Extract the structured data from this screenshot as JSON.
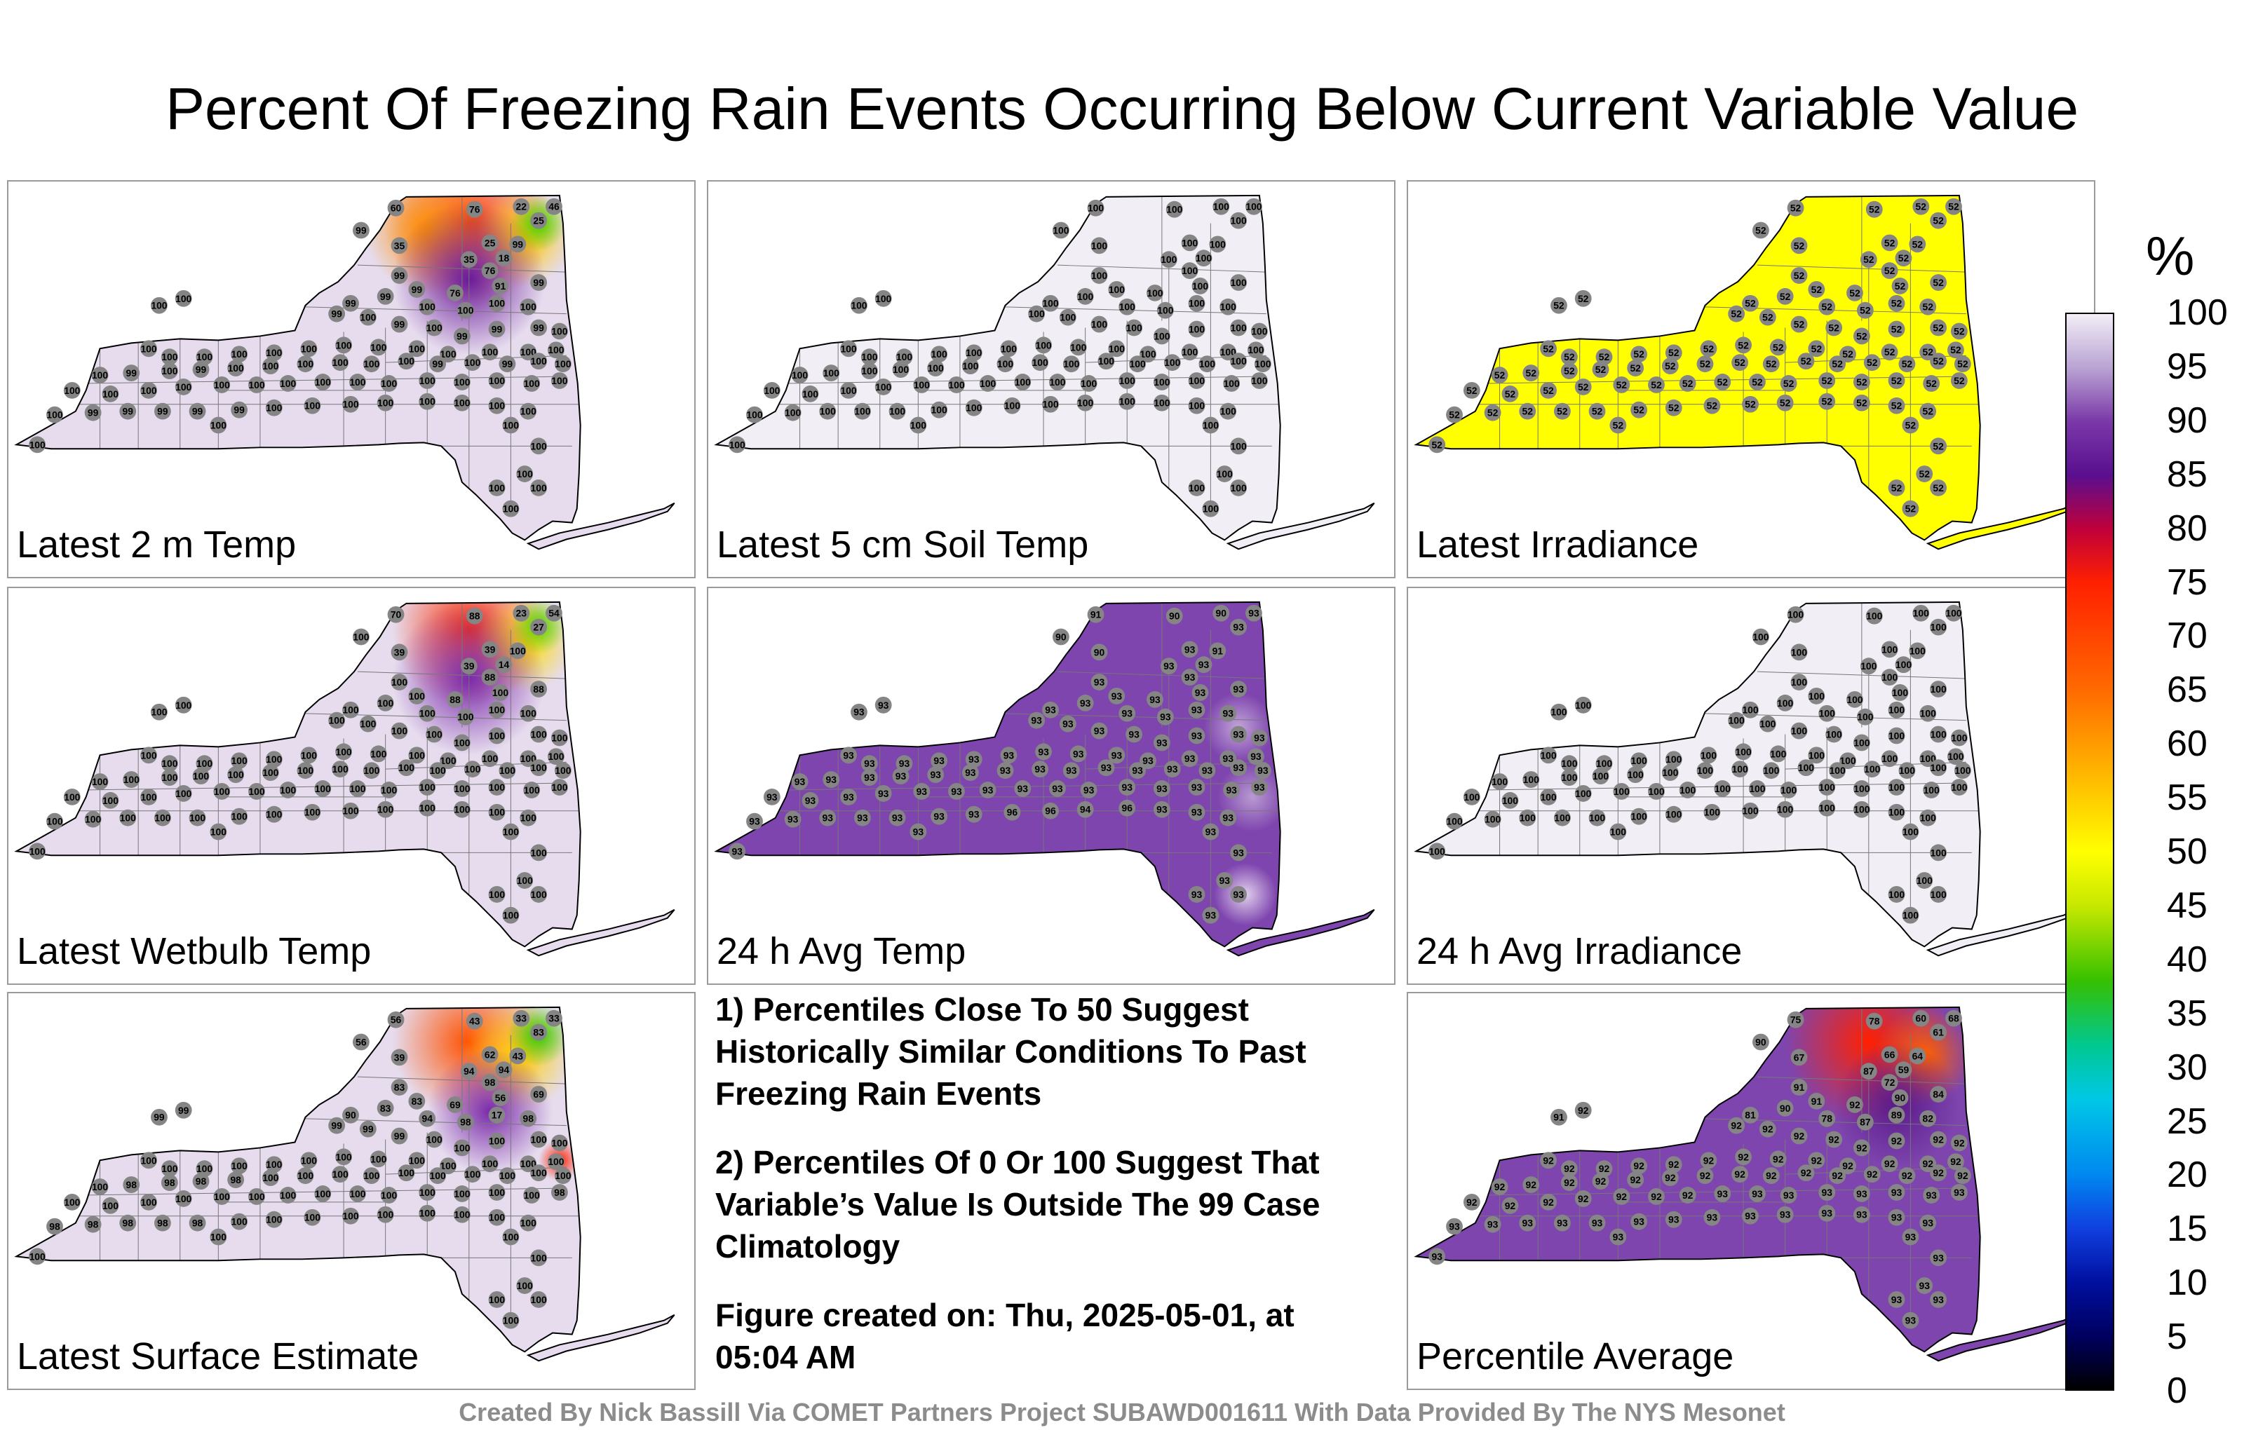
{
  "title": "Percent Of Freezing Rain Events Occurring Below Current Variable Value",
  "legend": {
    "unit": "%",
    "ticks": [
      "100",
      "95",
      "90",
      "85",
      "80",
      "75",
      "70",
      "65",
      "60",
      "55",
      "50",
      "45",
      "40",
      "35",
      "30",
      "25",
      "20",
      "15",
      "10",
      "5",
      "0"
    ]
  },
  "panels": [
    {
      "label": "Latest 2 m Temp",
      "base_color": "#e6dcee"
    },
    {
      "label": "Latest 5 cm Soil Temp",
      "base_color": "#f1eef5"
    },
    {
      "label": "Latest Irradiance",
      "base_color": "#ffff00"
    },
    {
      "label": "Latest Wetbulb Temp",
      "base_color": "#e6dcee"
    },
    {
      "label": "24 h Avg Temp",
      "base_color": "#7e45ae"
    },
    {
      "label": "24 h Avg Irradiance",
      "base_color": "#f1eef5"
    },
    {
      "label": "Latest Surface Estimate",
      "base_color": "#e6dcee"
    },
    {
      "label": "Percentile Average",
      "base_color": "#7e45ae"
    }
  ],
  "notes": [
    "1) Percentiles Close To 50 Suggest Historically Similar Conditions To Past Freezing Rain Events",
    "2) Percentiles Of 0 Or 100 Suggest That Variable’s Value Is Outside The 99 Case Climatology",
    "Figure created on: Thu, 2025-05-01, at 05:04 AM"
  ],
  "credit": "Created By Nick Bassill Via COMET Partners Project SUBAWD001611 With Data Provided By The NYS Mesonet",
  "station_values": {
    "latest_2m_temp": [
      "60",
      "76",
      "22",
      "46",
      "25",
      "99",
      "35",
      "25",
      "99",
      "35",
      "18",
      "76",
      "99",
      "99",
      "76",
      "91",
      "99",
      "99",
      "99",
      "100",
      "100",
      "100",
      "100",
      "100",
      "100",
      "99",
      "100",
      "99",
      "100",
      "99",
      "99",
      "99",
      "100",
      "100",
      "100",
      "100",
      "100",
      "100",
      "100",
      "100",
      "100",
      "100",
      "100",
      "100",
      "100",
      "100",
      "100",
      "99",
      "100",
      "99",
      "100",
      "100",
      "100",
      "100",
      "100",
      "100",
      "99",
      "100",
      "99",
      "100",
      "100",
      "100",
      "100",
      "100",
      "100",
      "100",
      "100",
      "100",
      "100",
      "100",
      "100",
      "100",
      "100",
      "100",
      "100",
      "100",
      "100",
      "99",
      "99",
      "99",
      "99",
      "99",
      "100",
      "100",
      "100",
      "100",
      "100",
      "100",
      "100",
      "100",
      "100",
      "100",
      "100",
      "100",
      "100",
      "100",
      "100",
      "100",
      "100",
      "100",
      "100",
      "100"
    ],
    "latest_5cm_soil_temp": [
      "100",
      "100",
      "100",
      "100",
      "100",
      "100",
      "100",
      "100",
      "100",
      "100",
      "100",
      "100",
      "100",
      "100",
      "100",
      "100",
      "100",
      "100",
      "100",
      "100",
      "100",
      "100",
      "100",
      "100",
      "100",
      "100",
      "100",
      "100",
      "100",
      "100",
      "100",
      "100",
      "100",
      "100",
      "100",
      "100",
      "100",
      "100",
      "100",
      "100",
      "100",
      "100",
      "100",
      "100",
      "100",
      "100",
      "100",
      "100",
      "100",
      "100",
      "100",
      "100",
      "100",
      "100",
      "100",
      "100",
      "100",
      "100",
      "100",
      "100",
      "100",
      "100",
      "100",
      "100",
      "100",
      "100",
      "100",
      "100",
      "100",
      "100",
      "100",
      "100",
      "100",
      "100",
      "100",
      "100",
      "100",
      "100",
      "100",
      "100",
      "100",
      "100",
      "100",
      "100",
      "100",
      "100",
      "100",
      "100",
      "100",
      "100",
      "100",
      "100",
      "100",
      "100",
      "100",
      "100",
      "100",
      "100",
      "100",
      "100",
      "100",
      "100"
    ],
    "latest_irradiance": [
      "52",
      "52",
      "52",
      "52",
      "52",
      "52",
      "52",
      "52",
      "52",
      "52",
      "52",
      "52",
      "52",
      "52",
      "52",
      "52",
      "52",
      "52",
      "52",
      "52",
      "52",
      "52",
      "52",
      "52",
      "52",
      "52",
      "52",
      "52",
      "52",
      "52",
      "52",
      "52",
      "52",
      "52",
      "52",
      "52",
      "52",
      "52",
      "52",
      "52",
      "52",
      "52",
      "52",
      "52",
      "52",
      "52",
      "52",
      "52",
      "52",
      "52",
      "52",
      "52",
      "52",
      "52",
      "52",
      "52",
      "52",
      "52",
      "52",
      "52",
      "52",
      "52",
      "52",
      "52",
      "52",
      "52",
      "52",
      "52",
      "52",
      "52",
      "52",
      "52",
      "52",
      "52",
      "52",
      "52",
      "52",
      "52",
      "52",
      "52",
      "52",
      "52",
      "52",
      "52",
      "52",
      "52",
      "52",
      "52",
      "52",
      "52",
      "52",
      "52",
      "52",
      "52",
      "52",
      "52",
      "52",
      "52",
      "52",
      "52",
      "52",
      "52"
    ],
    "latest_wetbulb_temp": [
      "70",
      "88",
      "23",
      "54",
      "27",
      "100",
      "39",
      "39",
      "100",
      "39",
      "14",
      "88",
      "100",
      "100",
      "88",
      "100",
      "88",
      "100",
      "100",
      "100",
      "100",
      "100",
      "100",
      "100",
      "100",
      "100",
      "100",
      "100",
      "100",
      "100",
      "100",
      "100",
      "100",
      "100",
      "100",
      "100",
      "100",
      "100",
      "100",
      "100",
      "100",
      "100",
      "100",
      "100",
      "100",
      "100",
      "100",
      "100",
      "100",
      "100",
      "100",
      "100",
      "100",
      "100",
      "100",
      "100",
      "100",
      "100",
      "100",
      "100",
      "100",
      "100",
      "100",
      "100",
      "100",
      "100",
      "100",
      "100",
      "100",
      "100",
      "100",
      "100",
      "100",
      "100",
      "100",
      "100",
      "100",
      "100",
      "100",
      "100",
      "100",
      "100",
      "100",
      "100",
      "100",
      "100",
      "100",
      "100",
      "100",
      "100",
      "100",
      "100",
      "100",
      "100",
      "100",
      "100",
      "100",
      "100",
      "100",
      "100",
      "100",
      "100"
    ],
    "avg_24h_temp": [
      "91",
      "90",
      "90",
      "93",
      "93",
      "90",
      "90",
      "93",
      "91",
      "93",
      "93",
      "93",
      "93",
      "93",
      "93",
      "93",
      "93",
      "93",
      "93",
      "93",
      "93",
      "93",
      "93",
      "93",
      "93",
      "93",
      "93",
      "93",
      "93",
      "93",
      "93",
      "93",
      "93",
      "93",
      "93",
      "93",
      "93",
      "93",
      "93",
      "93",
      "93",
      "93",
      "93",
      "93",
      "93",
      "93",
      "93",
      "93",
      "93",
      "93",
      "93",
      "93",
      "93",
      "93",
      "93",
      "93",
      "93",
      "93",
      "93",
      "93",
      "93",
      "93",
      "93",
      "93",
      "93",
      "93",
      "93",
      "93",
      "93",
      "93",
      "93",
      "93",
      "93",
      "93",
      "93",
      "93",
      "93",
      "93",
      "93",
      "93",
      "93",
      "93",
      "93",
      "96",
      "96",
      "94",
      "96",
      "93",
      "93",
      "93",
      "93",
      "93",
      "93",
      "93",
      "93",
      "93",
      "93",
      "93",
      "93",
      "93",
      "93",
      "93"
    ],
    "avg_24h_irradiance": [
      "100",
      "100",
      "100",
      "100",
      "100",
      "100",
      "100",
      "100",
      "100",
      "100",
      "100",
      "100",
      "100",
      "100",
      "100",
      "100",
      "100",
      "100",
      "100",
      "100",
      "100",
      "100",
      "100",
      "100",
      "100",
      "100",
      "100",
      "100",
      "100",
      "100",
      "100",
      "100",
      "100",
      "100",
      "100",
      "100",
      "100",
      "100",
      "100",
      "100",
      "100",
      "100",
      "100",
      "100",
      "100",
      "100",
      "100",
      "100",
      "100",
      "100",
      "100",
      "100",
      "100",
      "100",
      "100",
      "100",
      "100",
      "100",
      "100",
      "100",
      "100",
      "100",
      "100",
      "100",
      "100",
      "100",
      "100",
      "100",
      "100",
      "100",
      "100",
      "100",
      "100",
      "100",
      "100",
      "100",
      "100",
      "100",
      "100",
      "100",
      "100",
      "100",
      "100",
      "100",
      "100",
      "100",
      "100",
      "100",
      "100",
      "100",
      "100",
      "100",
      "100",
      "100",
      "100",
      "100",
      "100",
      "100",
      "100",
      "100",
      "100",
      "100"
    ],
    "latest_surface_estimate": [
      "56",
      "43",
      "33",
      "33",
      "83",
      "56",
      "39",
      "62",
      "43",
      "94",
      "94",
      "98",
      "83",
      "83",
      "69",
      "56",
      "69",
      "83",
      "90",
      "94",
      "98",
      "17",
      "98",
      "99",
      "99",
      "99",
      "99",
      "99",
      "100",
      "100",
      "100",
      "100",
      "100",
      "100",
      "100",
      "100",
      "100",
      "100",
      "100",
      "100",
      "100",
      "100",
      "100",
      "100",
      "100",
      "100",
      "100",
      "98",
      "98",
      "98",
      "98",
      "100",
      "100",
      "100",
      "100",
      "100",
      "100",
      "100",
      "100",
      "100",
      "100",
      "100",
      "100",
      "100",
      "100",
      "100",
      "100",
      "100",
      "100",
      "100",
      "100",
      "100",
      "100",
      "100",
      "100",
      "98",
      "98",
      "98",
      "98",
      "98",
      "98",
      "100",
      "100",
      "100",
      "100",
      "100",
      "100",
      "100",
      "100",
      "100",
      "100",
      "100",
      "100",
      "100",
      "100",
      "100",
      "100",
      "100",
      "100",
      "100",
      "100",
      "100"
    ],
    "percentile_average": [
      "75",
      "78",
      "60",
      "68",
      "61",
      "90",
      "67",
      "66",
      "64",
      "87",
      "59",
      "72",
      "91",
      "91",
      "92",
      "90",
      "84",
      "90",
      "81",
      "78",
      "87",
      "89",
      "82",
      "91",
      "92",
      "92",
      "92",
      "92",
      "92",
      "92",
      "92",
      "92",
      "92",
      "92",
      "92",
      "92",
      "92",
      "92",
      "92",
      "92",
      "92",
      "92",
      "92",
      "92",
      "92",
      "92",
      "92",
      "92",
      "92",
      "92",
      "92",
      "92",
      "92",
      "92",
      "92",
      "92",
      "92",
      "92",
      "92",
      "92",
      "92",
      "92",
      "92",
      "92",
      "92",
      "92",
      "92",
      "92",
      "93",
      "93",
      "93",
      "93",
      "93",
      "93",
      "93",
      "93",
      "93",
      "93",
      "93",
      "93",
      "93",
      "93",
      "93",
      "93",
      "93",
      "93",
      "93",
      "93",
      "93",
      "93",
      "93",
      "93",
      "93",
      "93",
      "93",
      "93",
      "93",
      "93",
      "93",
      "93",
      "93",
      "93"
    ]
  },
  "colors": {
    "panel_border": "#9a9a9a",
    "station_marker": "#858585",
    "credit_text": "#8c8c8c"
  }
}
